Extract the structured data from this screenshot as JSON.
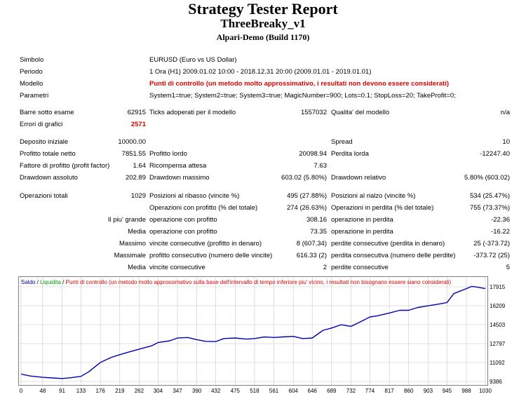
{
  "header": {
    "title": "Strategy Tester Report",
    "expert": "ThreeBreaky_v1",
    "server": "Alpari-Demo (Build 1170)"
  },
  "info": {
    "symbol_label": "Simbolo",
    "symbol_value": "EURUSD (Euro vs US Dollar)",
    "period_label": "Periodo",
    "period_value": "1 Ora (H1) 2009.01.02 10:00 - 2018.12.31 20:00 (2009.01.01 - 2019.01.01)",
    "model_label": "Modello",
    "model_value": "Punti di controllo (un metodo molto approssimativo, i resultati non devono essere considerati)",
    "params_label": "Parametri",
    "params_value": "System1=true; System2=true; System3=true; MagicNumber=900; Lots=0.1; StopLoss=20; TakeProfit=0;"
  },
  "bars": {
    "bars_label": "Barre sotto esame",
    "bars_value": "62915",
    "ticks_label": "Ticks adoperati per il modello",
    "ticks_value": "1557032",
    "quality_label": "Qualita' del modello",
    "quality_value": "n/a",
    "errors_label": "Errori di grafici",
    "errors_value": "2571"
  },
  "results": {
    "deposit_label": "Deposito iniziale",
    "deposit_value": "10000.00",
    "spread_label": "Spread",
    "spread_value": "10",
    "net_label": "Profitto totale netto",
    "net_value": "7851.55",
    "gross_profit_label": "Profitto lordo",
    "gross_profit_value": "20098.94",
    "gross_loss_label": "Perdita lorda",
    "gross_loss_value": "-12247.40",
    "pf_label": "Fattore di profitto (profit factor)",
    "pf_value": "1.64",
    "payoff_label": "Ricompensa attesa",
    "payoff_value": "7.63",
    "abs_dd_label": "Drawdown assoluto",
    "abs_dd_value": "202.89",
    "max_dd_label": "Drawdown massimo",
    "max_dd_value": "603.02 (5.80%)",
    "rel_dd_label": "Drawdown relativo",
    "rel_dd_value": "5.80% (603.02)",
    "total_trades_label": "Operazioni totali",
    "total_trades_value": "1029",
    "short_label": "Posizioni al ribasso (vincite %)",
    "short_value": "495 (27.88%)",
    "long_label": "Posizioni al rialzo (vincite %)",
    "long_value": "534 (25.47%)",
    "profit_trades_label": "Operazioni con profitto (% del totale)",
    "profit_trades_value": "274 (26.63%)",
    "loss_trades_label": "Operazioni in perdita (% del totale)",
    "loss_trades_value": "755 (73.37%)",
    "largest_label": "Il piu' grande",
    "largest_profit_label": "operazione con profitto",
    "largest_profit_value": "308.16",
    "largest_loss_label": "operazione in perdita",
    "largest_loss_value": "-22.36",
    "average_label": "Media",
    "avg_profit_label": "operazione con profitto",
    "avg_profit_value": "73.35",
    "avg_loss_label": "operazione in perdita",
    "avg_loss_value": "-16.22",
    "maximum_label": "Massimo",
    "max_cons_wins_label": "vincite consecutive (profitto in denaro)",
    "max_cons_wins_value": "8 (607.34)",
    "max_cons_losses_label": "perdite consecutive (perdita in denaro)",
    "max_cons_losses_value": "25 (-373.72)",
    "maximal_label": "Massimale",
    "maximal_profit_label": "profitto consecutivo (numero delle vincite)",
    "maximal_profit_value": "616.33 (2)",
    "maximal_loss_label": "perdita consecutiva (numero delle perdite)",
    "maximal_loss_value": "-373.72 (25)",
    "avg2_label": "Media",
    "avg_cons_wins_label": "vincite consecutive",
    "avg_cons_wins_value": "2",
    "avg_cons_losses_label": "perdite consecutive",
    "avg_cons_losses_value": "5"
  },
  "chart_data": {
    "type": "line",
    "legend": {
      "balance": "Saldo",
      "sep1": " / ",
      "equity": "Liquidita",
      "sep2": " / ",
      "note": "Punti di controllo (un metodo molto approssimativo sulla base dell'intervallo di tempo inferiore piu' vicino, i resultati non bisognano essere siano considerati)"
    },
    "colors": {
      "balance": "#0000b4",
      "equity": "#00a000",
      "note": "#e00000",
      "grid": "#c8c8c8"
    },
    "x_ticks": [
      "0",
      "48",
      "91",
      "133",
      "176",
      "219",
      "262",
      "304",
      "347",
      "390",
      "432",
      "475",
      "518",
      "561",
      "604",
      "646",
      "689",
      "732",
      "774",
      "817",
      "860",
      "903",
      "945",
      "988",
      "1030"
    ],
    "y_ticks": [
      "9386",
      "11092",
      "12797",
      "14503",
      "16209",
      "17915"
    ],
    "xlim": [
      0,
      1030
    ],
    "ylim": [
      9386,
      17915
    ],
    "series": [
      {
        "name": "Saldo",
        "x": [
          0,
          20,
          48,
          70,
          91,
          110,
          133,
          150,
          176,
          200,
          219,
          240,
          262,
          290,
          304,
          330,
          347,
          370,
          390,
          410,
          432,
          450,
          475,
          500,
          518,
          540,
          561,
          580,
          604,
          625,
          646,
          670,
          689,
          710,
          732,
          750,
          774,
          790,
          817,
          840,
          860,
          880,
          903,
          925,
          945,
          960,
          988,
          1000,
          1010,
          1030
        ],
        "y": [
          10050,
          9880,
          9760,
          9700,
          9650,
          9720,
          9850,
          10250,
          11100,
          11550,
          11800,
          12050,
          12300,
          12600,
          12900,
          13050,
          13300,
          13350,
          13150,
          13000,
          12980,
          13250,
          13300,
          13200,
          13250,
          13400,
          13350,
          13400,
          13450,
          13250,
          13300,
          14000,
          14200,
          14500,
          14350,
          14700,
          15200,
          15300,
          15550,
          15800,
          15800,
          16050,
          16200,
          16350,
          16500,
          17300,
          17750,
          17950,
          17900,
          17750
        ]
      }
    ]
  }
}
